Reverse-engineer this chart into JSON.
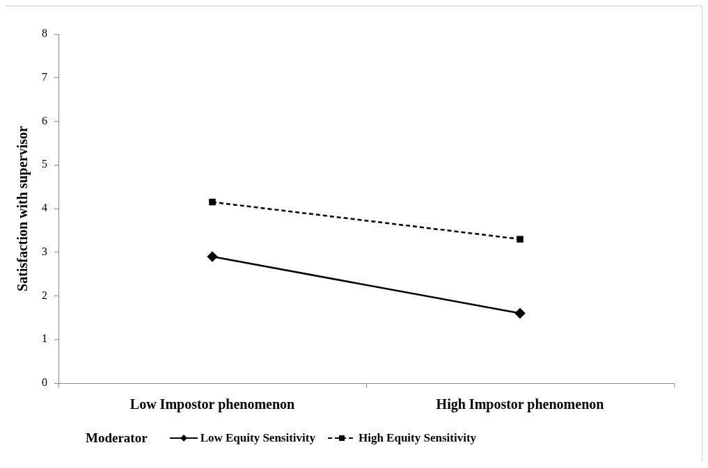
{
  "chart_data": {
    "type": "line",
    "ylabel": "Satisfaction with supervisor",
    "legend_title": "Moderator",
    "categories": [
      "Low Impostor phenomenon",
      "High Impostor phenomenon"
    ],
    "series": [
      {
        "name": "Low Equity Sensitivity",
        "color": "#000000",
        "values": [
          2.9,
          1.6
        ],
        "marker": "diamond",
        "line_style": "solid"
      },
      {
        "name": "High Equity Sensitivity",
        "color": "#000000",
        "values": [
          4.15,
          3.3
        ],
        "marker": "square",
        "line_style": "dashed"
      }
    ],
    "ylim": [
      0,
      8
    ],
    "yticks": [
      0,
      1,
      2,
      3,
      4,
      5,
      6,
      7,
      8
    ],
    "grid": false,
    "legend": "bottom"
  }
}
